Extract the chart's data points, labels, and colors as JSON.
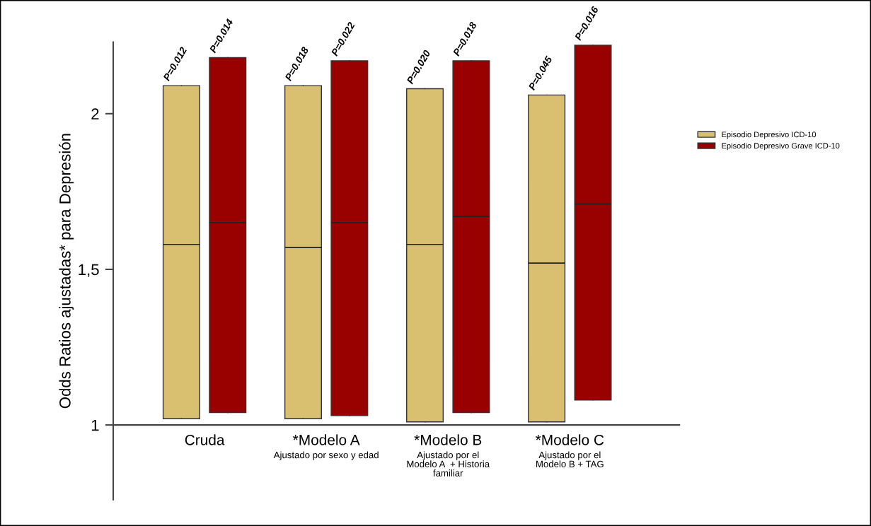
{
  "chart_data": {
    "type": "box",
    "ylabel": "Odds Ratios ajustadas* para Depresión",
    "categories": [
      "Cruda",
      "*Modelo A\nAjustado por sexo y edad",
      "*Modelo B\nAjustado por el\nModelo A  + Historia\nfamiliar",
      "*Modelo C\nAjustado por el\nModelo B + TAG"
    ],
    "series": [
      {
        "name": "Episodio Depresivo ICD-10",
        "color": "#d9c070",
        "boxes": [
          {
            "low": 1.02,
            "q1": 1.02,
            "median": 1.58,
            "q3": 2.09,
            "high": 2.09
          },
          {
            "low": 1.02,
            "q1": 1.02,
            "median": 1.57,
            "q3": 2.09,
            "high": 2.09
          },
          {
            "low": 1.01,
            "q1": 1.01,
            "median": 1.58,
            "q3": 2.08,
            "high": 2.08
          },
          {
            "low": 1.01,
            "q1": 1.01,
            "median": 1.52,
            "q3": 2.06,
            "high": 2.06
          }
        ]
      },
      {
        "name": "Episodio Depresivo Grave ICD-10",
        "color": "#990000",
        "boxes": [
          {
            "low": 1.04,
            "q1": 1.04,
            "median": 1.65,
            "q3": 2.18,
            "high": 2.18
          },
          {
            "low": 1.03,
            "q1": 1.03,
            "median": 1.65,
            "q3": 2.17,
            "high": 2.17
          },
          {
            "low": 1.04,
            "q1": 1.04,
            "median": 1.67,
            "q3": 2.17,
            "high": 2.17
          },
          {
            "low": 1.08,
            "q1": 1.08,
            "median": 1.71,
            "q3": 2.22,
            "high": 2.22
          }
        ]
      }
    ],
    "annotations": [
      "P=0.012",
      "P=0.014",
      "P=0.018",
      "P=0.022",
      "P=0.020",
      "P=0.018",
      "P=0.045",
      "P=0.016"
    ],
    "ylim": [
      0.76,
      2.23
    ],
    "yticks": [
      1,
      {
        "value": 1.5,
        "label": "1,5"
      },
      2
    ],
    "grid": false,
    "legend": "right"
  }
}
